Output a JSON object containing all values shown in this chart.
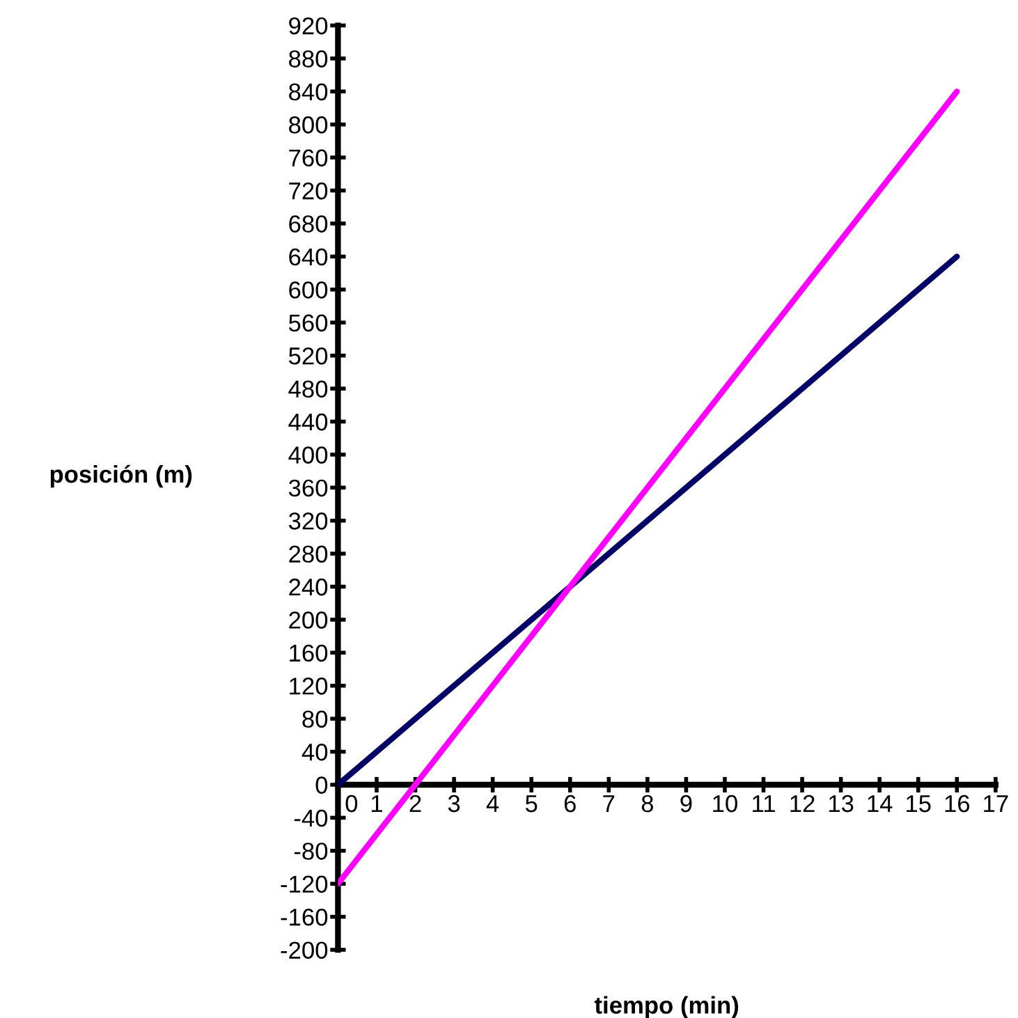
{
  "chart_data": {
    "type": "line",
    "xlabel": "tiempo (min)",
    "ylabel": "posición (m)",
    "x": [
      0,
      16
    ],
    "series": [
      {
        "values": [
          0,
          640
        ],
        "color": "#000066"
      },
      {
        "values": [
          -120,
          840
        ],
        "color": "#ff00ff"
      }
    ],
    "xlim": [
      0,
      17
    ],
    "ylim": [
      -200,
      920
    ],
    "xticks": [
      0,
      1,
      2,
      3,
      4,
      5,
      6,
      7,
      8,
      9,
      10,
      11,
      12,
      13,
      14,
      15,
      16,
      17
    ],
    "yticks": [
      -200,
      -160,
      -120,
      -80,
      -40,
      0,
      40,
      80,
      120,
      160,
      200,
      240,
      280,
      320,
      360,
      400,
      440,
      480,
      520,
      560,
      600,
      640,
      680,
      720,
      760,
      800,
      840,
      880,
      920
    ],
    "grid": false,
    "legend": false,
    "marker": "none",
    "line_style": "solid"
  }
}
